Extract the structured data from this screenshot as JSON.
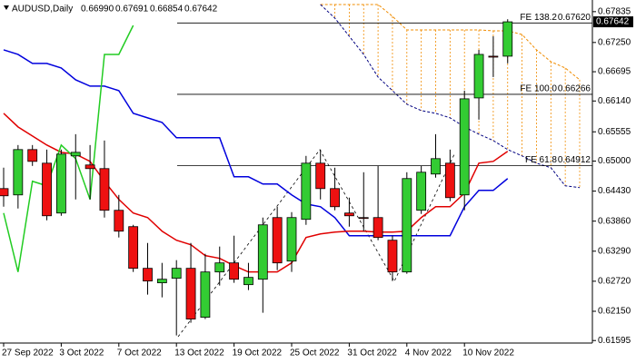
{
  "chart_data": {
    "type": "candlestick",
    "title": "AUDUSD,Daily",
    "quote": [
      "0.66990",
      "0.67691",
      "0.66854",
      "0.67642"
    ],
    "categories": [
      "27 Sep 2022",
      null,
      null,
      null,
      "3 Oct 2022",
      null,
      null,
      null,
      "7 Oct 2022",
      null,
      null,
      null,
      "13 Oct 2022",
      null,
      null,
      null,
      "19 Oct 2022",
      null,
      null,
      null,
      "25 Oct 2022",
      null,
      null,
      null,
      "31 Oct 2022",
      null,
      null,
      null,
      "4 Nov 2022",
      null,
      null,
      null,
      "10 Nov 2022",
      null,
      null,
      null,
      null,
      null,
      null,
      null,
      null
    ],
    "open": [
      0.64478,
      0.64358,
      0.65218,
      0.6496,
      0.64014,
      0.65098,
      0.64926,
      0.64857,
      0.64066,
      0.63756,
      0.62965,
      0.6269,
      0.62776,
      0.62965,
      0.62036,
      0.62896,
      0.63068,
      0.62655,
      0.62758,
      0.63928,
      0.63102,
      0.63894,
      0.6496,
      0.64478,
      0.64014,
      0.63928,
      0.63928,
      0.63498,
      0.62896,
      0.64066,
      0.64754,
      0.6496,
      0.64358,
      0.66198,
      0.6699,
      0.6699,
      null,
      null,
      null,
      null,
      null
    ],
    "high": [
      0.64874,
      0.65304,
      0.65304,
      0.65218,
      0.65218,
      0.6551,
      0.65304,
      0.6539,
      0.64358,
      0.6379,
      0.63446,
      0.63068,
      0.6312,
      0.63446,
      0.6324,
      0.63378,
      0.63584,
      0.63068,
      0.63928,
      0.64134,
      0.64031,
      0.65098,
      0.65218,
      0.64874,
      0.64306,
      0.64788,
      0.64908,
      0.63584,
      0.64788,
      0.64908,
      0.6551,
      0.65218,
      0.66336,
      0.6711,
      0.67368,
      0.67691,
      null,
      null,
      null,
      null,
      null
    ],
    "low": [
      0.64134,
      0.641,
      0.64908,
      0.63876,
      0.63962,
      0.64272,
      0.64272,
      0.63928,
      0.6355,
      0.62896,
      0.62466,
      0.62414,
      0.61692,
      0.61933,
      0.62002,
      0.62638,
      0.6269,
      0.62552,
      0.62122,
      0.6293,
      0.62896,
      0.6379,
      0.64272,
      0.64066,
      0.63756,
      0.6367,
      0.63498,
      0.62724,
      0.62862,
      0.63997,
      0.64685,
      0.64238,
      0.64066,
      0.65786,
      0.66594,
      0.66854,
      null,
      null,
      null,
      null,
      null
    ],
    "close": [
      0.64341,
      0.65218,
      0.64994,
      0.63962,
      0.65132,
      0.65166,
      0.64857,
      0.64066,
      0.6367,
      0.62965,
      0.62724,
      0.62758,
      0.62965,
      0.62002,
      0.62896,
      0.63068,
      0.62758,
      0.62793,
      0.6379,
      0.63068,
      0.63928,
      0.6496,
      0.64478,
      0.64134,
      0.63962,
      0.63911,
      0.6355,
      0.62896,
      0.64668,
      0.64788,
      0.65046,
      0.64306,
      0.66181,
      0.67024,
      0.66972,
      0.67642,
      null,
      null,
      null,
      null,
      null
    ],
    "up_color": "#33cc33",
    "down_color": "#ee1111",
    "lines": [
      {
        "color": "#0000dd",
        "values": [
          0.6711,
          0.67024,
          0.66852,
          0.66852,
          0.66766,
          0.66542,
          0.66422,
          0.66422,
          0.66336,
          0.65906,
          0.6582,
          0.65734,
          0.65442,
          0.65442,
          0.65442,
          0.65442,
          0.64702,
          0.64702,
          0.64564,
          0.64564,
          0.64358,
          0.64186,
          0.64134,
          0.63928,
          0.63584,
          0.63584,
          0.63584,
          0.63584,
          0.63584,
          0.63584,
          0.63584,
          0.63584,
          0.64134,
          0.64444,
          0.64444,
          0.64668,
          null,
          null,
          null,
          null,
          null
        ]
      },
      {
        "color": "#e00000",
        "values": [
          0.65906,
          0.65648,
          0.65476,
          0.65304,
          0.65166,
          0.65132,
          0.64994,
          0.64616,
          0.64272,
          0.64014,
          0.63928,
          0.6367,
          0.63498,
          0.63412,
          0.63206,
          0.63154,
          0.63016,
          0.62896,
          0.62896,
          0.62896,
          0.63068,
          0.6355,
          0.63618,
          0.63653,
          0.6367,
          0.6367,
          0.63653,
          0.63653,
          0.6367,
          0.63928,
          0.64134,
          0.64134,
          0.64392,
          0.6496,
          0.64994,
          0.65184,
          null,
          null,
          null,
          null,
          null
        ]
      },
      {
        "color": "#22cc22",
        "values": [
          0.64014,
          0.62896,
          0.64616,
          0.6453,
          0.65304,
          0.65046,
          0.64272,
          0.67024,
          0.67024,
          0.67574,
          null,
          null,
          null,
          null,
          null,
          null,
          null,
          null,
          null,
          null,
          null,
          null,
          null,
          null,
          null,
          null,
          null,
          null,
          null,
          null,
          null,
          null,
          null,
          null,
          null,
          null,
          null,
          null,
          null,
          null,
          null
        ]
      }
    ],
    "cloud": {
      "color": "#f08c00",
      "lower_color": "#000080",
      "upper": [
        null,
        null,
        null,
        null,
        null,
        null,
        null,
        null,
        null,
        null,
        null,
        null,
        null,
        null,
        null,
        null,
        null,
        null,
        null,
        null,
        null,
        null,
        0.6797,
        0.6797,
        0.6797,
        0.6797,
        0.6797,
        0.67746,
        0.67488,
        0.67488,
        0.67488,
        0.67488,
        0.67488,
        0.67488,
        0.67471,
        0.67471,
        0.67402,
        0.6711,
        0.66886,
        0.66766,
        0.66542
      ],
      "lower": [
        null,
        null,
        null,
        null,
        null,
        null,
        null,
        null,
        null,
        null,
        null,
        null,
        null,
        null,
        null,
        null,
        null,
        null,
        null,
        null,
        null,
        null,
        0.6797,
        0.67712,
        0.67368,
        0.67024,
        0.66594,
        0.66336,
        0.66078,
        0.65958,
        0.65906,
        0.6582,
        0.65648,
        0.6551,
        0.6539,
        0.65218,
        0.65098,
        0.6496,
        0.64874,
        0.6453,
        0.64496
      ]
    },
    "levels": [
      {
        "label": "FE 138.2",
        "value": 0.6762,
        "value_label": "0.67620"
      },
      {
        "label": "FE 100.0",
        "value": 0.66266,
        "value_label": "0.66266"
      },
      {
        "label": "FE 61.8",
        "value": 0.64912,
        "value_label": "0.64912"
      }
    ],
    "last_price": 0.67642,
    "ylim": [
      0.6153,
      0.6797
    ],
    "yticks": [
      0.67835,
      {
        "value": 0.6725,
        "label": "0.67250"
      },
      0.66695,
      {
        "value": 0.6614,
        "label": "0.66140"
      },
      0.65555,
      {
        "value": 0.65,
        "label": "0.65000"
      },
      {
        "value": 0.6443,
        "label": "0.64430"
      },
      {
        "value": 0.6386,
        "label": "0.63860"
      },
      {
        "value": 0.6329,
        "label": "0.63290"
      },
      {
        "value": 0.6272,
        "label": "0.62720"
      },
      {
        "value": 0.6215,
        "label": "0.62150"
      },
      0.61595
    ],
    "grid": false
  }
}
